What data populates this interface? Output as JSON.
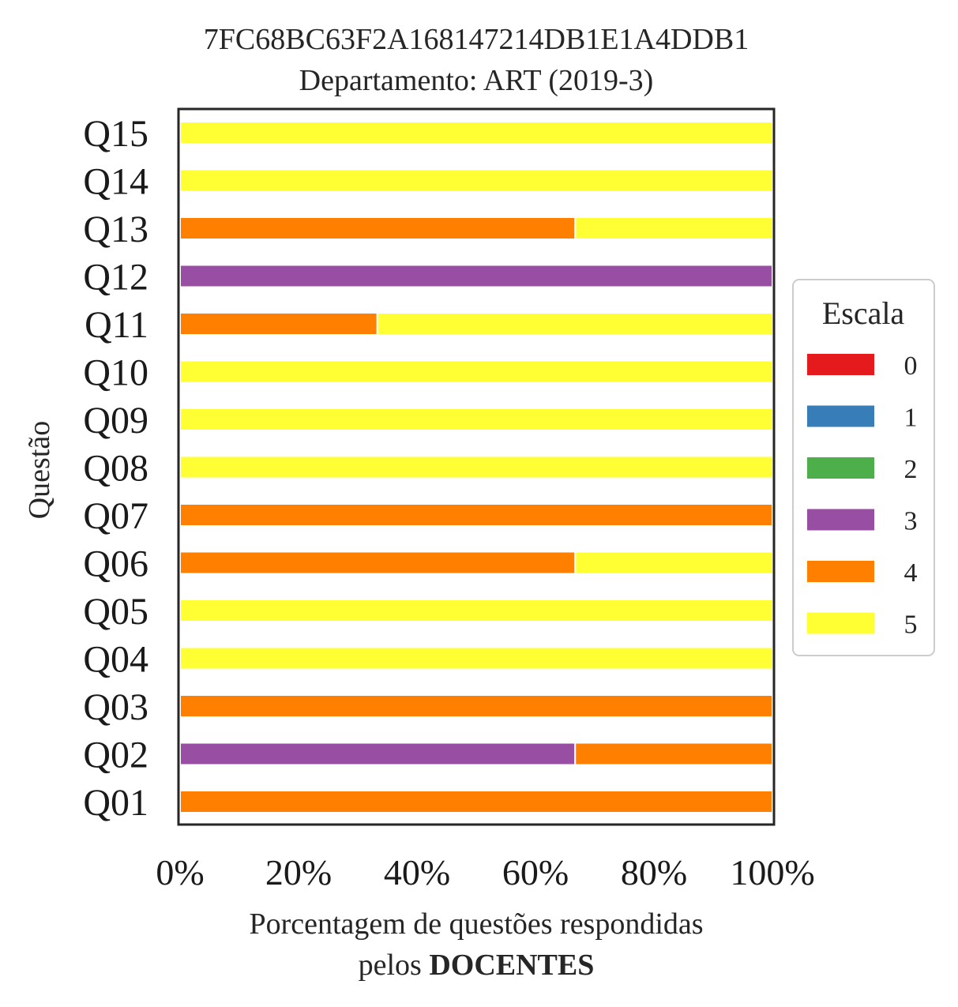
{
  "chart_data": {
    "type": "bar",
    "orientation": "horizontal",
    "stacked": true,
    "title_line1": "7FC68BC63F2A168147214DB1E1A4DDB1",
    "title_line2": "Departamento: ART (2019-3)",
    "ylabel": "Questão",
    "xlabel_line1": "Porcentagem de questões respondidas",
    "xlabel_line2_prefix": "pelos",
    "xlabel_line2_bold": "DOCENTES",
    "xlim": [
      0,
      100
    ],
    "xticks": [
      "0%",
      "20%",
      "40%",
      "60%",
      "80%",
      "100%"
    ],
    "categories": [
      "Q01",
      "Q02",
      "Q03",
      "Q04",
      "Q05",
      "Q06",
      "Q07",
      "Q08",
      "Q09",
      "Q10",
      "Q11",
      "Q12",
      "Q13",
      "Q14",
      "Q15"
    ],
    "series": [
      {
        "name": "0",
        "color": "#e41a1c",
        "values": [
          0,
          0,
          0,
          0,
          0,
          0,
          0,
          0,
          0,
          0,
          0,
          0,
          0,
          0,
          0
        ]
      },
      {
        "name": "1",
        "color": "#377eb8",
        "values": [
          0,
          0,
          0,
          0,
          0,
          0,
          0,
          0,
          0,
          0,
          0,
          0,
          0,
          0,
          0
        ]
      },
      {
        "name": "2",
        "color": "#4daf4a",
        "values": [
          0,
          0,
          0,
          0,
          0,
          0,
          0,
          0,
          0,
          0,
          0,
          0,
          0,
          0,
          0
        ]
      },
      {
        "name": "3",
        "color": "#984ea3",
        "values": [
          0,
          66.7,
          0,
          0,
          0,
          0,
          0,
          0,
          0,
          0,
          0,
          100,
          0,
          0,
          0
        ]
      },
      {
        "name": "4",
        "color": "#ff7f00",
        "values": [
          100,
          33.3,
          100,
          0,
          0,
          66.7,
          100,
          0,
          0,
          0,
          33.3,
          0,
          66.7,
          0,
          0
        ]
      },
      {
        "name": "5",
        "color": "#ffff33",
        "values": [
          0,
          0,
          0,
          100,
          100,
          33.3,
          0,
          100,
          100,
          100,
          66.7,
          0,
          33.3,
          100,
          100
        ]
      }
    ],
    "legend": {
      "title": "Escala",
      "placement": "center-right"
    },
    "grid": false
  }
}
